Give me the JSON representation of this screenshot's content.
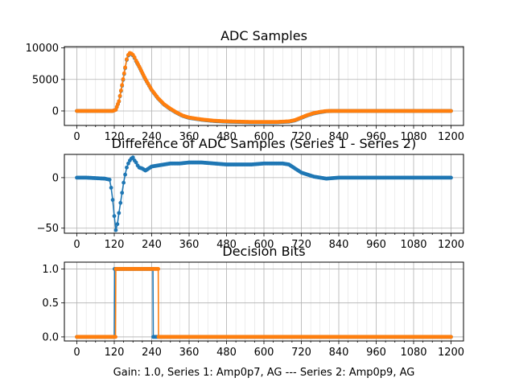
{
  "figure": {
    "xlabel": "Gain: 1.0, Series 1: Amp0p7, AG --- Series 2: Amp0p9, AG"
  },
  "colors": {
    "series1": "#1f77b4",
    "series2": "#ff7f0e"
  },
  "chart_data": [
    {
      "type": "scatter",
      "title": "ADC Samples",
      "xlim": [
        -40,
        1240
      ],
      "ylim": [
        -2300,
        10200
      ],
      "xticks": [
        0,
        120,
        240,
        360,
        480,
        600,
        720,
        840,
        960,
        1080,
        1200
      ],
      "xtick_labels": [
        "0",
        "120",
        "240",
        "360",
        "480",
        "600",
        "720",
        "840",
        "960",
        "1080",
        "1200"
      ],
      "yticks": [
        0,
        5000,
        10000
      ],
      "ytick_labels": [
        "0",
        "5000",
        "10000"
      ],
      "grid": true,
      "series": [
        {
          "x": [
            0,
            100,
            115,
            125,
            135,
            145,
            155,
            160,
            165,
            170,
            175,
            180,
            185,
            190,
            200,
            210,
            220,
            240,
            260,
            280,
            300,
            320,
            340,
            360,
            400,
            440,
            480,
            520,
            560,
            600,
            640,
            680,
            700,
            720,
            740,
            760,
            780,
            800,
            820,
            840,
            900,
            960,
            1080,
            1200
          ],
          "y": [
            0,
            0,
            0,
            200,
            1500,
            4000,
            6800,
            8100,
            8800,
            9100,
            9000,
            8800,
            8400,
            7900,
            7000,
            6000,
            5000,
            3300,
            2000,
            1000,
            300,
            -300,
            -800,
            -1100,
            -1400,
            -1600,
            -1700,
            -1750,
            -1800,
            -1800,
            -1800,
            -1700,
            -1500,
            -1100,
            -700,
            -400,
            -200,
            -50,
            0,
            0,
            0,
            0,
            0,
            0
          ]
        },
        {
          "x": [
            0,
            100,
            115,
            125,
            135,
            145,
            155,
            160,
            165,
            170,
            175,
            180,
            185,
            190,
            200,
            210,
            220,
            240,
            260,
            280,
            300,
            320,
            340,
            360,
            400,
            440,
            480,
            520,
            560,
            600,
            640,
            680,
            700,
            720,
            740,
            760,
            780,
            800,
            820,
            840,
            900,
            960,
            1080,
            1200
          ],
          "y": [
            0,
            0,
            0,
            200,
            1550,
            4100,
            6900,
            8200,
            8900,
            9200,
            9100,
            8900,
            8500,
            8000,
            7050,
            6050,
            5050,
            3350,
            2050,
            1050,
            350,
            -250,
            -750,
            -1050,
            -1350,
            -1550,
            -1650,
            -1700,
            -1750,
            -1750,
            -1750,
            -1650,
            -1450,
            -1050,
            -650,
            -350,
            -150,
            -20,
            0,
            0,
            0,
            0,
            0,
            0
          ]
        }
      ]
    },
    {
      "type": "scatter",
      "title": "Difference of ADC Samples (Series 1 - Series 2)",
      "xlim": [
        -40,
        1240
      ],
      "ylim": [
        -55,
        23
      ],
      "xticks": [
        0,
        120,
        240,
        360,
        480,
        600,
        720,
        840,
        960,
        1080,
        1200
      ],
      "xtick_labels": [
        "0",
        "120",
        "240",
        "360",
        "480",
        "600",
        "720",
        "840",
        "960",
        "1080",
        "1200"
      ],
      "yticks": [
        -50,
        0
      ],
      "ytick_labels": [
        "−50",
        "0"
      ],
      "grid": true,
      "series": [
        {
          "x": [
            0,
            30,
            60,
            90,
            105,
            110,
            115,
            120,
            125,
            130,
            135,
            140,
            145,
            150,
            155,
            160,
            165,
            170,
            175,
            180,
            185,
            190,
            195,
            200,
            210,
            220,
            230,
            240,
            260,
            280,
            300,
            330,
            360,
            400,
            440,
            480,
            520,
            560,
            600,
            640,
            660,
            680,
            700,
            720,
            760,
            800,
            840,
            900,
            960,
            1080,
            1200
          ],
          "y": [
            0,
            0,
            -0.5,
            -1,
            -2,
            -10,
            -22,
            -38,
            -52,
            -46,
            -35,
            -25,
            -15,
            -5,
            3,
            10,
            14,
            17,
            19,
            20,
            17,
            15,
            12,
            10,
            9,
            7,
            9,
            11,
            12,
            13,
            14,
            14,
            15,
            15,
            14,
            13,
            13,
            13,
            14,
            14,
            14,
            13,
            9,
            5,
            1,
            -1,
            0,
            0,
            0,
            0,
            0
          ]
        }
      ]
    },
    {
      "type": "scatter",
      "title": "Decision Bits",
      "xlim": [
        -40,
        1240
      ],
      "ylim": [
        -0.06,
        1.1
      ],
      "xticks": [
        0,
        120,
        240,
        360,
        480,
        600,
        720,
        840,
        960,
        1080,
        1200
      ],
      "xtick_labels": [
        "0",
        "120",
        "240",
        "360",
        "480",
        "600",
        "720",
        "840",
        "960",
        "1080",
        "1200"
      ],
      "yticks": [
        0.0,
        0.5,
        1.0
      ],
      "ytick_labels": [
        "0.0",
        "0.5",
        "1.0"
      ],
      "grid": true,
      "series": [
        {
          "x": [
            0,
            120,
            121,
            244,
            245,
            1200
          ],
          "y": [
            0,
            0,
            1,
            1,
            0,
            0
          ]
        },
        {
          "x": [
            0,
            124,
            125,
            261,
            262,
            1200
          ],
          "y": [
            0,
            0,
            1,
            1,
            0,
            0
          ]
        }
      ]
    }
  ]
}
